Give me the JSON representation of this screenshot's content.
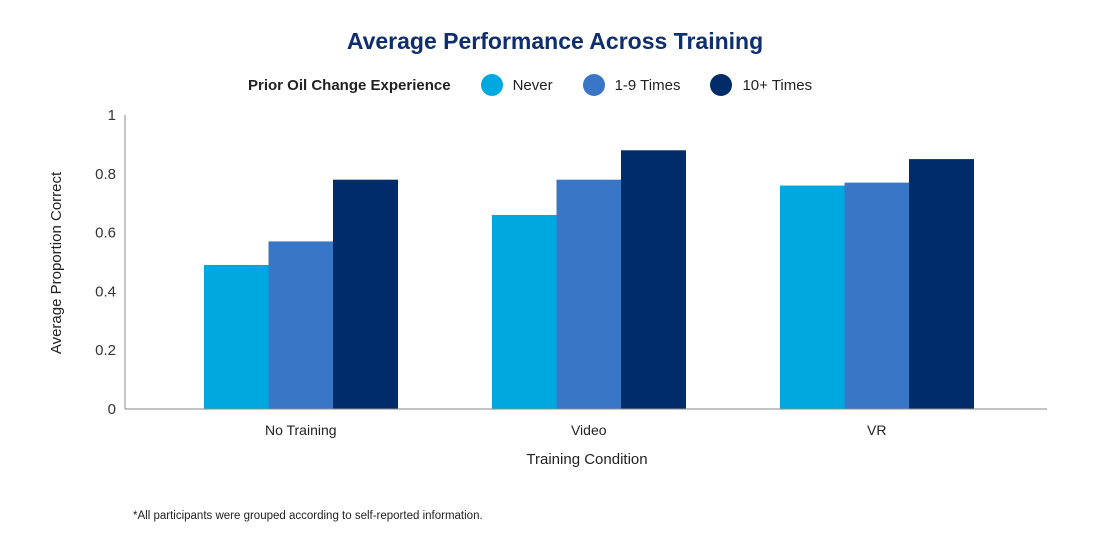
{
  "chart_data": {
    "type": "bar",
    "title": "Average Performance Across Training",
    "legend_title": "Prior Oil Change Experience",
    "categories": [
      "No Training",
      "Video",
      "VR"
    ],
    "series": [
      {
        "name": "Never",
        "color": "#00a8e1",
        "values": [
          0.49,
          0.66,
          0.76
        ]
      },
      {
        "name": "1-9 Times",
        "color": "#3a76c6",
        "values": [
          0.57,
          0.78,
          0.77
        ]
      },
      {
        "name": "10+ Times",
        "color": "#002d6a",
        "values": [
          0.78,
          0.88,
          0.85
        ]
      }
    ],
    "xlabel": "Training Condition",
    "ylabel": "Average Proportion Correct",
    "ylim": [
      0,
      1
    ],
    "yticks": [
      "0",
      "0.2",
      "0.4",
      "0.6",
      "0.8",
      "1"
    ],
    "ytick_values": [
      0,
      0.2,
      0.4,
      0.6,
      0.8,
      1
    ],
    "legend_position": "top-center",
    "grid": false
  },
  "footnote": "*All participants were grouped according to self-reported information."
}
